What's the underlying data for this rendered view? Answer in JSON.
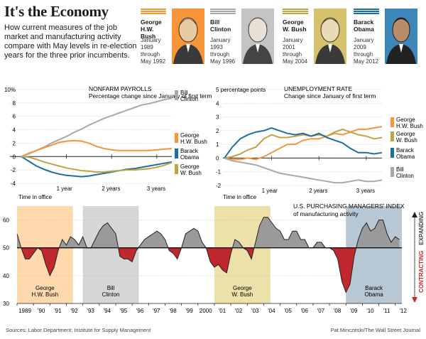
{
  "header": {
    "title": "It's the Economy",
    "subtitle": "How current measures of the job market and manufacturing activity compare with May levels in re-election years for the three prior incumbents."
  },
  "presidents": [
    {
      "name": "George H.W. Bush",
      "dates": "January 1989 through May 1992",
      "color": "#f7953b",
      "icon": "portrait-hw-bush"
    },
    {
      "name": "Bill Clinton",
      "dates": "January 1993 through May 1996",
      "color": "#a9a9a9",
      "icon": "portrait-clinton"
    },
    {
      "name": "George W. Bush",
      "dates": "January 2001 through May 2004",
      "color": "#bfa445",
      "icon": "portrait-w-bush"
    },
    {
      "name": "Barack Obama",
      "dates": "January 2009 through May 2012",
      "color": "#1c6fa3",
      "icon": "portrait-obama"
    }
  ],
  "chart_data": [
    {
      "type": "line",
      "title": "NONFARM PAYROLLS",
      "subtitle": "Percentage change since January of first term",
      "ylim": [
        -4,
        10
      ],
      "yticks": [
        "-4",
        "-2",
        "0",
        "2",
        "4",
        "6",
        "8",
        "10%"
      ],
      "xticks": [
        "1 year",
        "2 years",
        "3 years"
      ],
      "xlabel": "Time in office",
      "x": [
        0,
        2,
        4,
        6,
        8,
        10,
        12,
        14,
        16,
        18,
        20,
        22,
        24,
        26,
        28,
        30,
        32,
        34,
        36,
        38,
        40
      ],
      "series": [
        {
          "name": "Bill Clinton",
          "color": "#a9a9a9",
          "values": [
            0,
            0.4,
            0.9,
            1.4,
            2.0,
            2.5,
            3.0,
            3.6,
            4.1,
            4.7,
            5.2,
            5.7,
            6.1,
            6.5,
            6.9,
            7.3,
            7.7,
            7.9,
            8.2,
            8.5,
            8.7
          ]
        },
        {
          "name": "George H.W. Bush",
          "color": "#f7953b",
          "values": [
            0,
            0.5,
            0.9,
            1.3,
            1.7,
            2.1,
            2.3,
            2.4,
            2.3,
            2.0,
            1.5,
            1.2,
            1.0,
            0.9,
            0.9,
            0.9,
            0.9,
            0.9,
            1.0,
            1.1,
            1.2
          ]
        },
        {
          "name": "Barack Obama",
          "color": "#1c6fa3",
          "values": [
            0,
            -0.7,
            -1.4,
            -1.9,
            -2.3,
            -2.6,
            -2.8,
            -2.9,
            -3.0,
            -2.9,
            -2.7,
            -2.5,
            -2.3,
            -2.1,
            -1.9,
            -1.8,
            -1.6,
            -1.4,
            -1.2,
            -1.0,
            -0.8
          ]
        },
        {
          "name": "George W. Bush",
          "color": "#bfa445",
          "values": [
            0,
            -0.1,
            -0.4,
            -0.8,
            -1.1,
            -1.4,
            -1.7,
            -1.9,
            -2.1,
            -2.2,
            -2.3,
            -2.3,
            -2.2,
            -2.1,
            -2.0,
            -2.0,
            -1.9,
            -1.8,
            -1.6,
            -1.3,
            -0.9
          ]
        }
      ]
    },
    {
      "type": "line",
      "title": "UNEMPLOYMENT RATE",
      "subtitle": "Change since January of first term",
      "ylim": [
        -2,
        5
      ],
      "yticks": [
        "-2",
        "-1",
        "0",
        "1",
        "2",
        "3",
        "4",
        "5 percentage points"
      ],
      "xticks": [
        "1 year",
        "2 years",
        "3 years"
      ],
      "xlabel": "Time in office",
      "x": [
        0,
        2,
        4,
        6,
        8,
        10,
        12,
        14,
        16,
        18,
        20,
        22,
        24,
        26,
        28,
        30,
        32,
        34,
        36,
        38,
        40
      ],
      "series": [
        {
          "name": "George H.W. Bush",
          "color": "#f7953b",
          "values": [
            0,
            -0.1,
            -0.1,
            0.0,
            -0.1,
            0.1,
            0.4,
            0.7,
            1.0,
            1.0,
            1.3,
            1.4,
            1.4,
            1.6,
            1.8,
            1.7,
            1.9,
            2.1,
            2.1,
            2.2,
            2.3
          ]
        },
        {
          "name": "George W. Bush",
          "color": "#bfa445",
          "values": [
            0,
            0.1,
            0.3,
            0.6,
            0.8,
            1.4,
            1.7,
            1.5,
            1.5,
            1.6,
            1.7,
            1.6,
            1.7,
            1.6,
            1.9,
            2.1,
            1.9,
            1.7,
            1.6,
            1.4,
            1.5
          ]
        },
        {
          "name": "Barack Obama",
          "color": "#1c6fa3",
          "values": [
            0,
            0.8,
            1.4,
            1.7,
            1.9,
            2.0,
            2.2,
            2.0,
            1.8,
            1.7,
            1.8,
            1.6,
            1.8,
            1.5,
            1.3,
            1.1,
            0.7,
            0.4,
            0.4,
            0.3,
            0.4
          ]
        },
        {
          "name": "Bill Clinton",
          "color": "#a9a9a9",
          "values": [
            0,
            -0.2,
            -0.3,
            -0.4,
            -0.5,
            -0.7,
            -0.9,
            -1.1,
            -1.2,
            -1.3,
            -1.4,
            -1.5,
            -1.6,
            -1.7,
            -1.8,
            -1.8,
            -1.7,
            -1.6,
            -1.7,
            -1.7,
            -1.6
          ]
        }
      ]
    },
    {
      "type": "area",
      "title": "U.S. PURCHASING MANAGERS' INDEX",
      "subtitle": "of manufacturing activity",
      "baseline": 50,
      "ylim": [
        30,
        65
      ],
      "yticks": [
        "30",
        "40",
        "50",
        "60"
      ],
      "xticks": [
        "1989",
        "'90",
        "'91",
        "'92",
        "'93",
        "'94",
        "'95",
        "'96",
        "'97",
        "'98",
        "'99",
        "2000",
        "'01",
        "'02",
        "'03",
        "'04",
        "'05",
        "'06",
        "'07",
        "'08",
        "'09",
        "'10",
        "'11",
        "'12"
      ],
      "side_labels": {
        "expanding": "EXPANDING",
        "contracting": "CONTRACTING"
      },
      "shaded_periods": [
        {
          "label": "George H.W. Bush",
          "start": 1989.0,
          "end": 1992.4,
          "color": "#fdd9ad"
        },
        {
          "label": "Bill Clinton",
          "start": 1993.0,
          "end": 1996.4,
          "color": "#d6d6d6"
        },
        {
          "label": "George W. Bush",
          "start": 2001.0,
          "end": 2004.4,
          "color": "#ede1aa"
        },
        {
          "label": "Barack Obama",
          "start": 2009.0,
          "end": 2012.4,
          "color": "#b7c7d3"
        }
      ],
      "x": [
        1989.0,
        1989.25,
        1989.5,
        1989.75,
        1990.0,
        1990.25,
        1990.5,
        1990.75,
        1991.0,
        1991.25,
        1991.5,
        1991.75,
        1992.0,
        1992.25,
        1992.5,
        1992.75,
        1993.0,
        1993.25,
        1993.5,
        1993.75,
        1994.0,
        1994.25,
        1994.5,
        1994.75,
        1995.0,
        1995.25,
        1995.5,
        1995.75,
        1996.0,
        1996.25,
        1996.5,
        1996.75,
        1997.0,
        1997.25,
        1997.5,
        1997.75,
        1998.0,
        1998.25,
        1998.5,
        1998.75,
        1999.0,
        1999.25,
        1999.5,
        1999.75,
        2000.0,
        2000.25,
        2000.5,
        2000.75,
        2001.0,
        2001.25,
        2001.5,
        2001.75,
        2002.0,
        2002.25,
        2002.5,
        2002.75,
        2003.0,
        2003.25,
        2003.5,
        2003.75,
        2004.0,
        2004.25,
        2004.5,
        2004.75,
        2005.0,
        2005.25,
        2005.5,
        2005.75,
        2006.0,
        2006.25,
        2006.5,
        2006.75,
        2007.0,
        2007.25,
        2007.5,
        2007.75,
        2008.0,
        2008.25,
        2008.5,
        2008.75,
        2009.0,
        2009.25,
        2009.5,
        2009.75,
        2010.0,
        2010.25,
        2010.5,
        2010.75,
        2011.0,
        2011.25,
        2011.5,
        2011.75,
        2012.0,
        2012.25
      ],
      "values": [
        55,
        50,
        46,
        46,
        48,
        50,
        49,
        44,
        40,
        43,
        49,
        53,
        51,
        54,
        53,
        51,
        54,
        50,
        50,
        53,
        56,
        58,
        59,
        57,
        55,
        47,
        46,
        46,
        45,
        49,
        51,
        53,
        54,
        55,
        56,
        55,
        53,
        49,
        48,
        46,
        50,
        55,
        56,
        57,
        56,
        52,
        50,
        45,
        43,
        44,
        42,
        41,
        48,
        53,
        52,
        50,
        49,
        46,
        52,
        58,
        61,
        61,
        59,
        57,
        56,
        53,
        53,
        56,
        56,
        53,
        53,
        50,
        50,
        52,
        52,
        50,
        50,
        49,
        46,
        38,
        34,
        37,
        47,
        53,
        57,
        59,
        56,
        57,
        60,
        60,
        55,
        52,
        54,
        53
      ],
      "above_color": "#9a9a9a",
      "below_color": "#c0282d"
    }
  ],
  "footer": {
    "source": "Sources: Labor Department; Institute for Supply Management",
    "credit": "Pat Minczeski/The Wall Street Journal"
  }
}
